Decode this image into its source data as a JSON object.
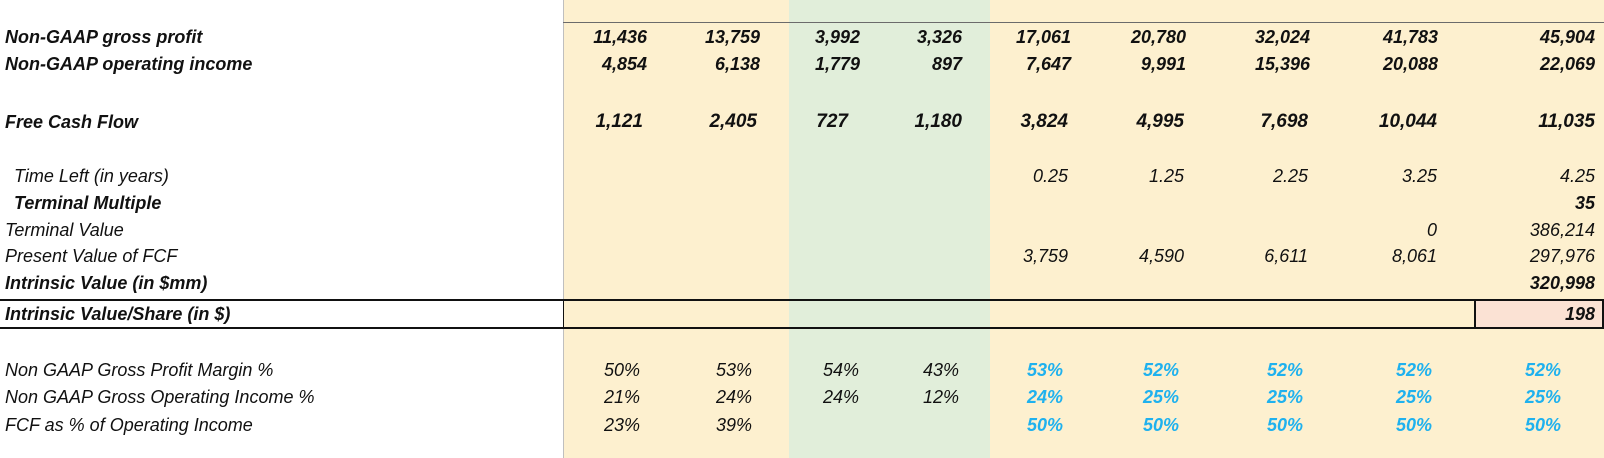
{
  "sheet": {
    "rows": [
      {
        "id": "gross_profit",
        "label": "Non-GAAP gross profit",
        "values": [
          "11,436",
          "13,759",
          "3,992",
          "3,326",
          "17,061",
          "20,780",
          "32,024",
          "41,783",
          "45,904"
        ]
      },
      {
        "id": "operating_income",
        "label": "Non-GAAP operating income",
        "values": [
          "4,854",
          "6,138",
          "1,779",
          "897",
          "7,647",
          "9,991",
          "15,396",
          "20,088",
          "22,069"
        ]
      },
      {
        "id": "fcf",
        "label": "Free Cash Flow",
        "values": [
          "1,121",
          "2,405",
          "727",
          "1,180",
          "3,824",
          "4,995",
          "7,698",
          "10,044",
          "11,035"
        ]
      },
      {
        "id": "time_left",
        "label": "Time Left (in years)",
        "values": [
          "",
          "",
          "",
          "",
          "0.25",
          "1.25",
          "2.25",
          "3.25",
          "4.25"
        ]
      },
      {
        "id": "terminal_multiple",
        "label": "Terminal Multiple",
        "values": [
          "",
          "",
          "",
          "",
          "",
          "",
          "",
          "",
          "35"
        ]
      },
      {
        "id": "terminal_value",
        "label": "Terminal Value",
        "values": [
          "",
          "",
          "",
          "",
          "",
          "",
          "",
          "0",
          "386,214"
        ]
      },
      {
        "id": "pv_fcf",
        "label": "Present Value of FCF",
        "values": [
          "",
          "",
          "",
          "",
          "3,759",
          "4,590",
          "6,611",
          "8,061",
          "297,976"
        ]
      },
      {
        "id": "intrinsic_value",
        "label": "Intrinsic Value (in $mm)",
        "values": [
          "",
          "",
          "",
          "",
          "",
          "",
          "",
          "",
          "320,998"
        ]
      },
      {
        "id": "intrinsic_value_share",
        "label": "Intrinsic Value/Share (in $)",
        "values": [
          "",
          "",
          "",
          "",
          "",
          "",
          "",
          "",
          "198"
        ]
      },
      {
        "id": "gp_margin",
        "label": "Non GAAP Gross Profit Margin %",
        "values": [
          "50%",
          "53%",
          "54%",
          "43%",
          "53%",
          "52%",
          "52%",
          "52%",
          "52%"
        ]
      },
      {
        "id": "oi_margin",
        "label": "Non GAAP Gross Operating Income %",
        "values": [
          "21%",
          "24%",
          "24%",
          "12%",
          "24%",
          "25%",
          "25%",
          "25%",
          "25%"
        ]
      },
      {
        "id": "fcf_pct",
        "label": "FCF as % of Operating Income",
        "values": [
          "23%",
          "39%",
          "",
          "",
          "50%",
          "50%",
          "50%",
          "50%",
          "50%"
        ]
      }
    ]
  },
  "colors": {
    "band_yellow": "#fdf0cf",
    "band_green": "#e1eeda",
    "highlight_cell": "#fbe2d4",
    "forecast_blue": "#1fb1ee"
  }
}
